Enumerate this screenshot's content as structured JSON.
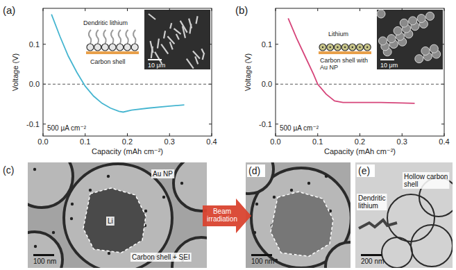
{
  "chart_data": [
    {
      "type": "line",
      "panel_label": "(a)",
      "xlabel": "Capacity (mAh cm⁻²)",
      "ylabel": "Voltage (V)",
      "x": [
        0.02,
        0.04,
        0.06,
        0.08,
        0.1,
        0.12,
        0.14,
        0.16,
        0.18,
        0.19,
        0.21,
        0.25,
        0.3,
        0.335
      ],
      "values": [
        0.175,
        0.12,
        0.07,
        0.03,
        -0.005,
        -0.03,
        -0.048,
        -0.06,
        -0.068,
        -0.07,
        -0.065,
        -0.06,
        -0.055,
        -0.052
      ],
      "color": "#45b5d0",
      "xlim": [
        0,
        0.4
      ],
      "ylim": [
        -0.13,
        0.19
      ],
      "xticks": [
        {
          "value": 0,
          "label": "0.0"
        },
        0.1,
        0.2,
        0.3,
        0.4
      ],
      "yticks": [
        -0.1,
        {
          "value": 0,
          "label": "0.0"
        },
        0.1
      ],
      "baseline": 0,
      "annotations": [
        "500 µA cm⁻²"
      ],
      "inset_labels": [
        "Dendritic lithium",
        "Carbon shell"
      ],
      "inset_scale_bar": "10 μm"
    },
    {
      "type": "line",
      "panel_label": "(b)",
      "xlabel": "Capacity (mAh cm⁻²)",
      "ylabel": "Voltage (V)",
      "x": [
        0.03,
        0.05,
        0.07,
        0.09,
        0.1,
        0.12,
        0.14,
        0.16,
        0.2,
        0.25,
        0.3,
        0.33
      ],
      "values": [
        0.165,
        0.115,
        0.07,
        0.025,
        0.0,
        -0.025,
        -0.042,
        -0.046,
        -0.046,
        -0.046,
        -0.047,
        -0.048
      ],
      "color": "#d6457a",
      "xlim": [
        0,
        0.4
      ],
      "ylim": [
        -0.13,
        0.19
      ],
      "xticks": [
        {
          "value": 0,
          "label": "0.0"
        },
        0.1,
        0.2,
        0.3,
        0.4
      ],
      "yticks": [
        -0.1,
        {
          "value": 0,
          "label": "0.0"
        },
        0.1
      ],
      "baseline": 0,
      "annotations": [
        "500 µA cm⁻²"
      ],
      "inset_labels": [
        "Lithium",
        "Carbon shell with Au NP"
      ],
      "inset_scale_bar": "10 μm"
    }
  ],
  "images": [
    {
      "panel_label": "(c)",
      "labels": [
        "Au NP",
        "Li",
        "Carbon shell + SEI"
      ],
      "scale_bar": "100 nm"
    },
    {
      "panel_label": "(d)",
      "labels": [],
      "scale_bar": "100 nm"
    },
    {
      "panel_label": "(e)",
      "labels": [
        "Dendritic lithium",
        "Hollow carbon shell"
      ],
      "scale_bar": "200 nm"
    }
  ],
  "arrow_label": "Beam irradiation"
}
